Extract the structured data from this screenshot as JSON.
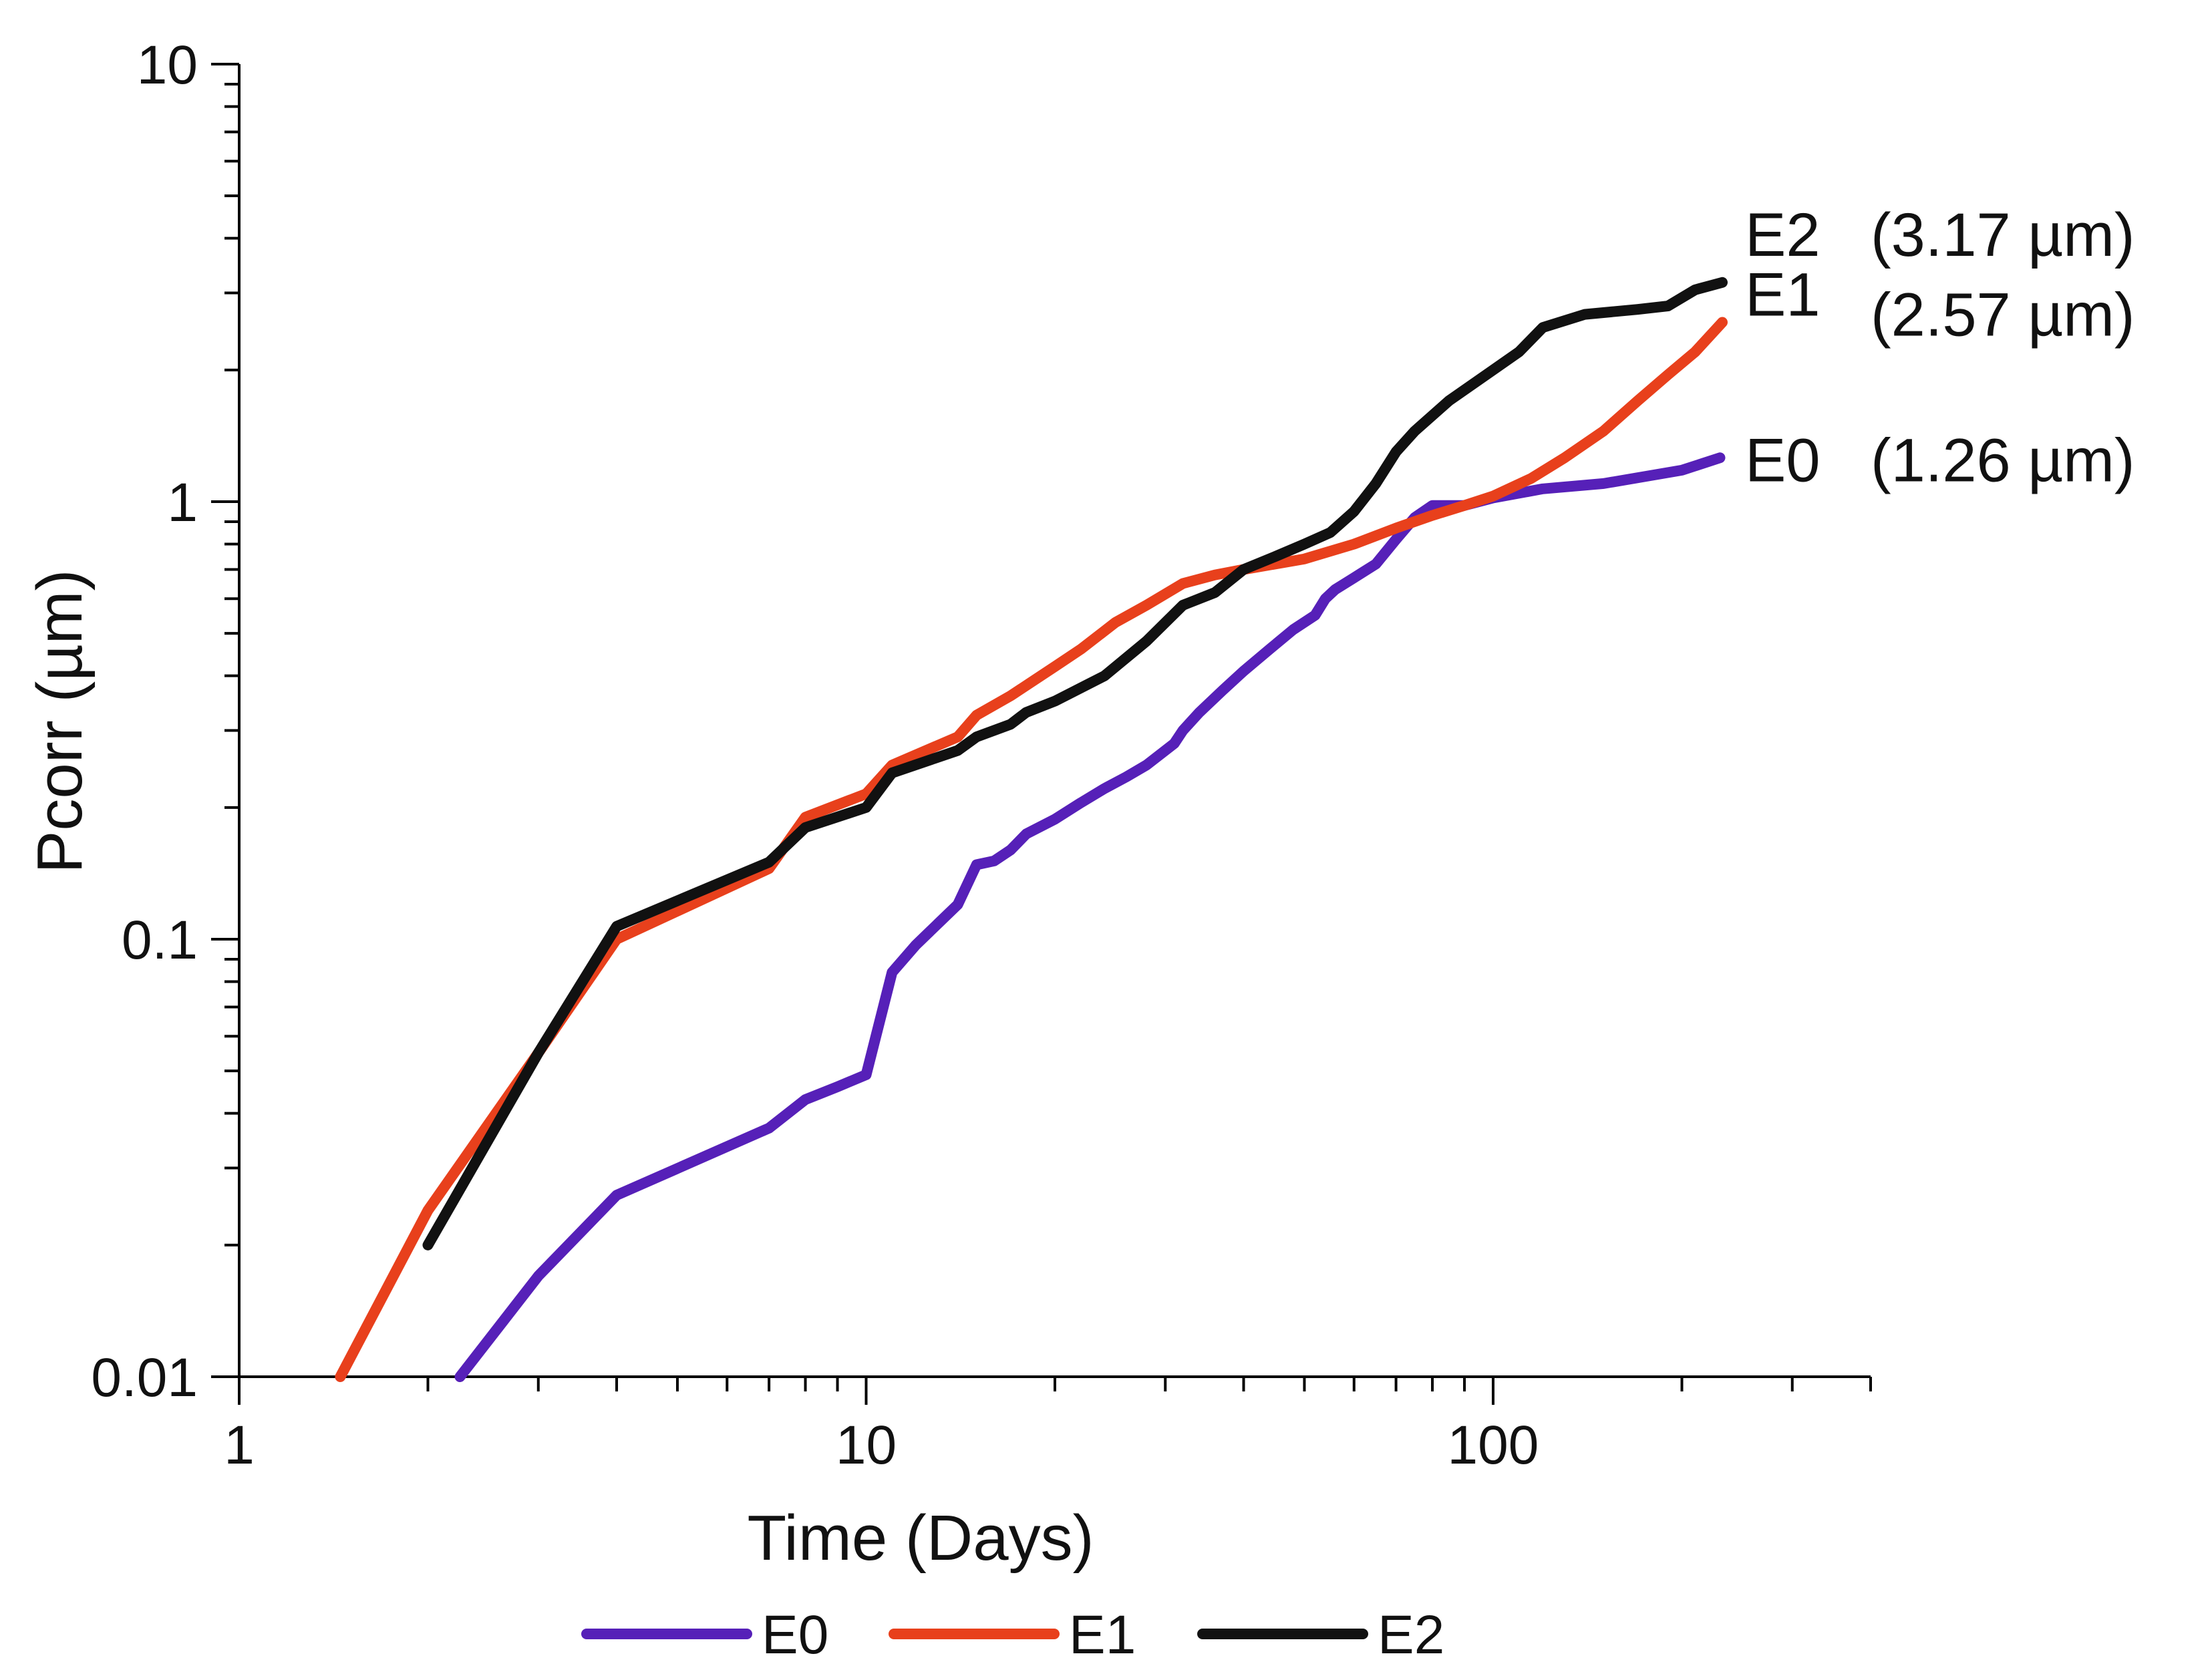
{
  "chart_data": {
    "type": "line",
    "title": "",
    "xlabel": "Time (Days)",
    "ylabel": "Pcorr (µm)",
    "x_scale": "log",
    "y_scale": "log",
    "xlim": [
      1,
      400
    ],
    "ylim": [
      0.01,
      10
    ],
    "x_ticks": [
      {
        "value": 1,
        "label": "1"
      },
      {
        "value": 10,
        "label": "10"
      },
      {
        "value": 100,
        "label": "100"
      }
    ],
    "y_ticks": [
      {
        "value": 0.01,
        "label": "0.01"
      },
      {
        "value": 0.1,
        "label": "0.1"
      },
      {
        "value": 1,
        "label": "1"
      },
      {
        "value": 10,
        "label": "10"
      }
    ],
    "grid": false,
    "legend_position": "bottom",
    "series": [
      {
        "name": "E0",
        "color": "#5620b8",
        "end_label": "E0",
        "end_value_label": "(1.26 µm)",
        "points": [
          [
            2.25,
            0.01
          ],
          [
            3,
            0.017
          ],
          [
            4,
            0.026
          ],
          [
            7,
            0.037
          ],
          [
            8,
            0.043
          ],
          [
            9,
            0.046
          ],
          [
            10,
            0.049
          ],
          [
            11,
            0.084
          ],
          [
            12,
            0.097
          ],
          [
            14,
            0.12
          ],
          [
            15,
            0.148
          ],
          [
            16,
            0.151
          ],
          [
            17,
            0.16
          ],
          [
            18,
            0.174
          ],
          [
            20,
            0.188
          ],
          [
            22,
            0.205
          ],
          [
            24,
            0.221
          ],
          [
            26,
            0.235
          ],
          [
            28,
            0.25
          ],
          [
            31,
            0.28
          ],
          [
            32,
            0.3
          ],
          [
            34,
            0.33
          ],
          [
            37,
            0.37
          ],
          [
            40,
            0.41
          ],
          [
            44,
            0.46
          ],
          [
            48,
            0.51
          ],
          [
            52,
            0.55
          ],
          [
            54,
            0.6
          ],
          [
            56,
            0.63
          ],
          [
            60,
            0.67
          ],
          [
            65,
            0.72
          ],
          [
            70,
            0.82
          ],
          [
            75,
            0.92
          ],
          [
            80,
            0.98
          ],
          [
            90,
            0.98
          ],
          [
            100,
            1.02
          ],
          [
            120,
            1.07
          ],
          [
            150,
            1.1
          ],
          [
            200,
            1.18
          ],
          [
            230,
            1.26
          ]
        ]
      },
      {
        "name": "E1",
        "color": "#e8401c",
        "end_label": "E1",
        "end_value_label": "(2.57 µm)",
        "points": [
          [
            1.45,
            0.01
          ],
          [
            2,
            0.024
          ],
          [
            3,
            0.055
          ],
          [
            4,
            0.1
          ],
          [
            7,
            0.145
          ],
          [
            8,
            0.19
          ],
          [
            10,
            0.215
          ],
          [
            11,
            0.25
          ],
          [
            14,
            0.29
          ],
          [
            15,
            0.325
          ],
          [
            17,
            0.36
          ],
          [
            20,
            0.42
          ],
          [
            22,
            0.46
          ],
          [
            25,
            0.53
          ],
          [
            28,
            0.58
          ],
          [
            32,
            0.65
          ],
          [
            36,
            0.68
          ],
          [
            40,
            0.7
          ],
          [
            50,
            0.74
          ],
          [
            60,
            0.8
          ],
          [
            70,
            0.87
          ],
          [
            80,
            0.93
          ],
          [
            90,
            0.98
          ],
          [
            100,
            1.03
          ],
          [
            115,
            1.13
          ],
          [
            130,
            1.26
          ],
          [
            150,
            1.45
          ],
          [
            170,
            1.7
          ],
          [
            190,
            1.95
          ],
          [
            210,
            2.2
          ],
          [
            232,
            2.57
          ]
        ]
      },
      {
        "name": "E2",
        "color": "#111111",
        "end_label": "E2",
        "end_value_label": "(3.17 µm)",
        "points": [
          [
            2,
            0.02
          ],
          [
            3,
            0.055
          ],
          [
            4,
            0.107
          ],
          [
            7,
            0.15
          ],
          [
            8,
            0.18
          ],
          [
            10,
            0.2
          ],
          [
            11,
            0.24
          ],
          [
            14,
            0.27
          ],
          [
            15,
            0.29
          ],
          [
            17,
            0.31
          ],
          [
            18,
            0.33
          ],
          [
            20,
            0.35
          ],
          [
            24,
            0.4
          ],
          [
            28,
            0.48
          ],
          [
            32,
            0.58
          ],
          [
            36,
            0.62
          ],
          [
            40,
            0.7
          ],
          [
            45,
            0.75
          ],
          [
            50,
            0.8
          ],
          [
            55,
            0.85
          ],
          [
            60,
            0.95
          ],
          [
            65,
            1.1
          ],
          [
            70,
            1.3
          ],
          [
            75,
            1.45
          ],
          [
            85,
            1.7
          ],
          [
            100,
            2.0
          ],
          [
            110,
            2.2
          ],
          [
            120,
            2.5
          ],
          [
            140,
            2.68
          ],
          [
            170,
            2.75
          ],
          [
            190,
            2.8
          ],
          [
            210,
            3.05
          ],
          [
            232,
            3.17
          ]
        ]
      }
    ]
  }
}
